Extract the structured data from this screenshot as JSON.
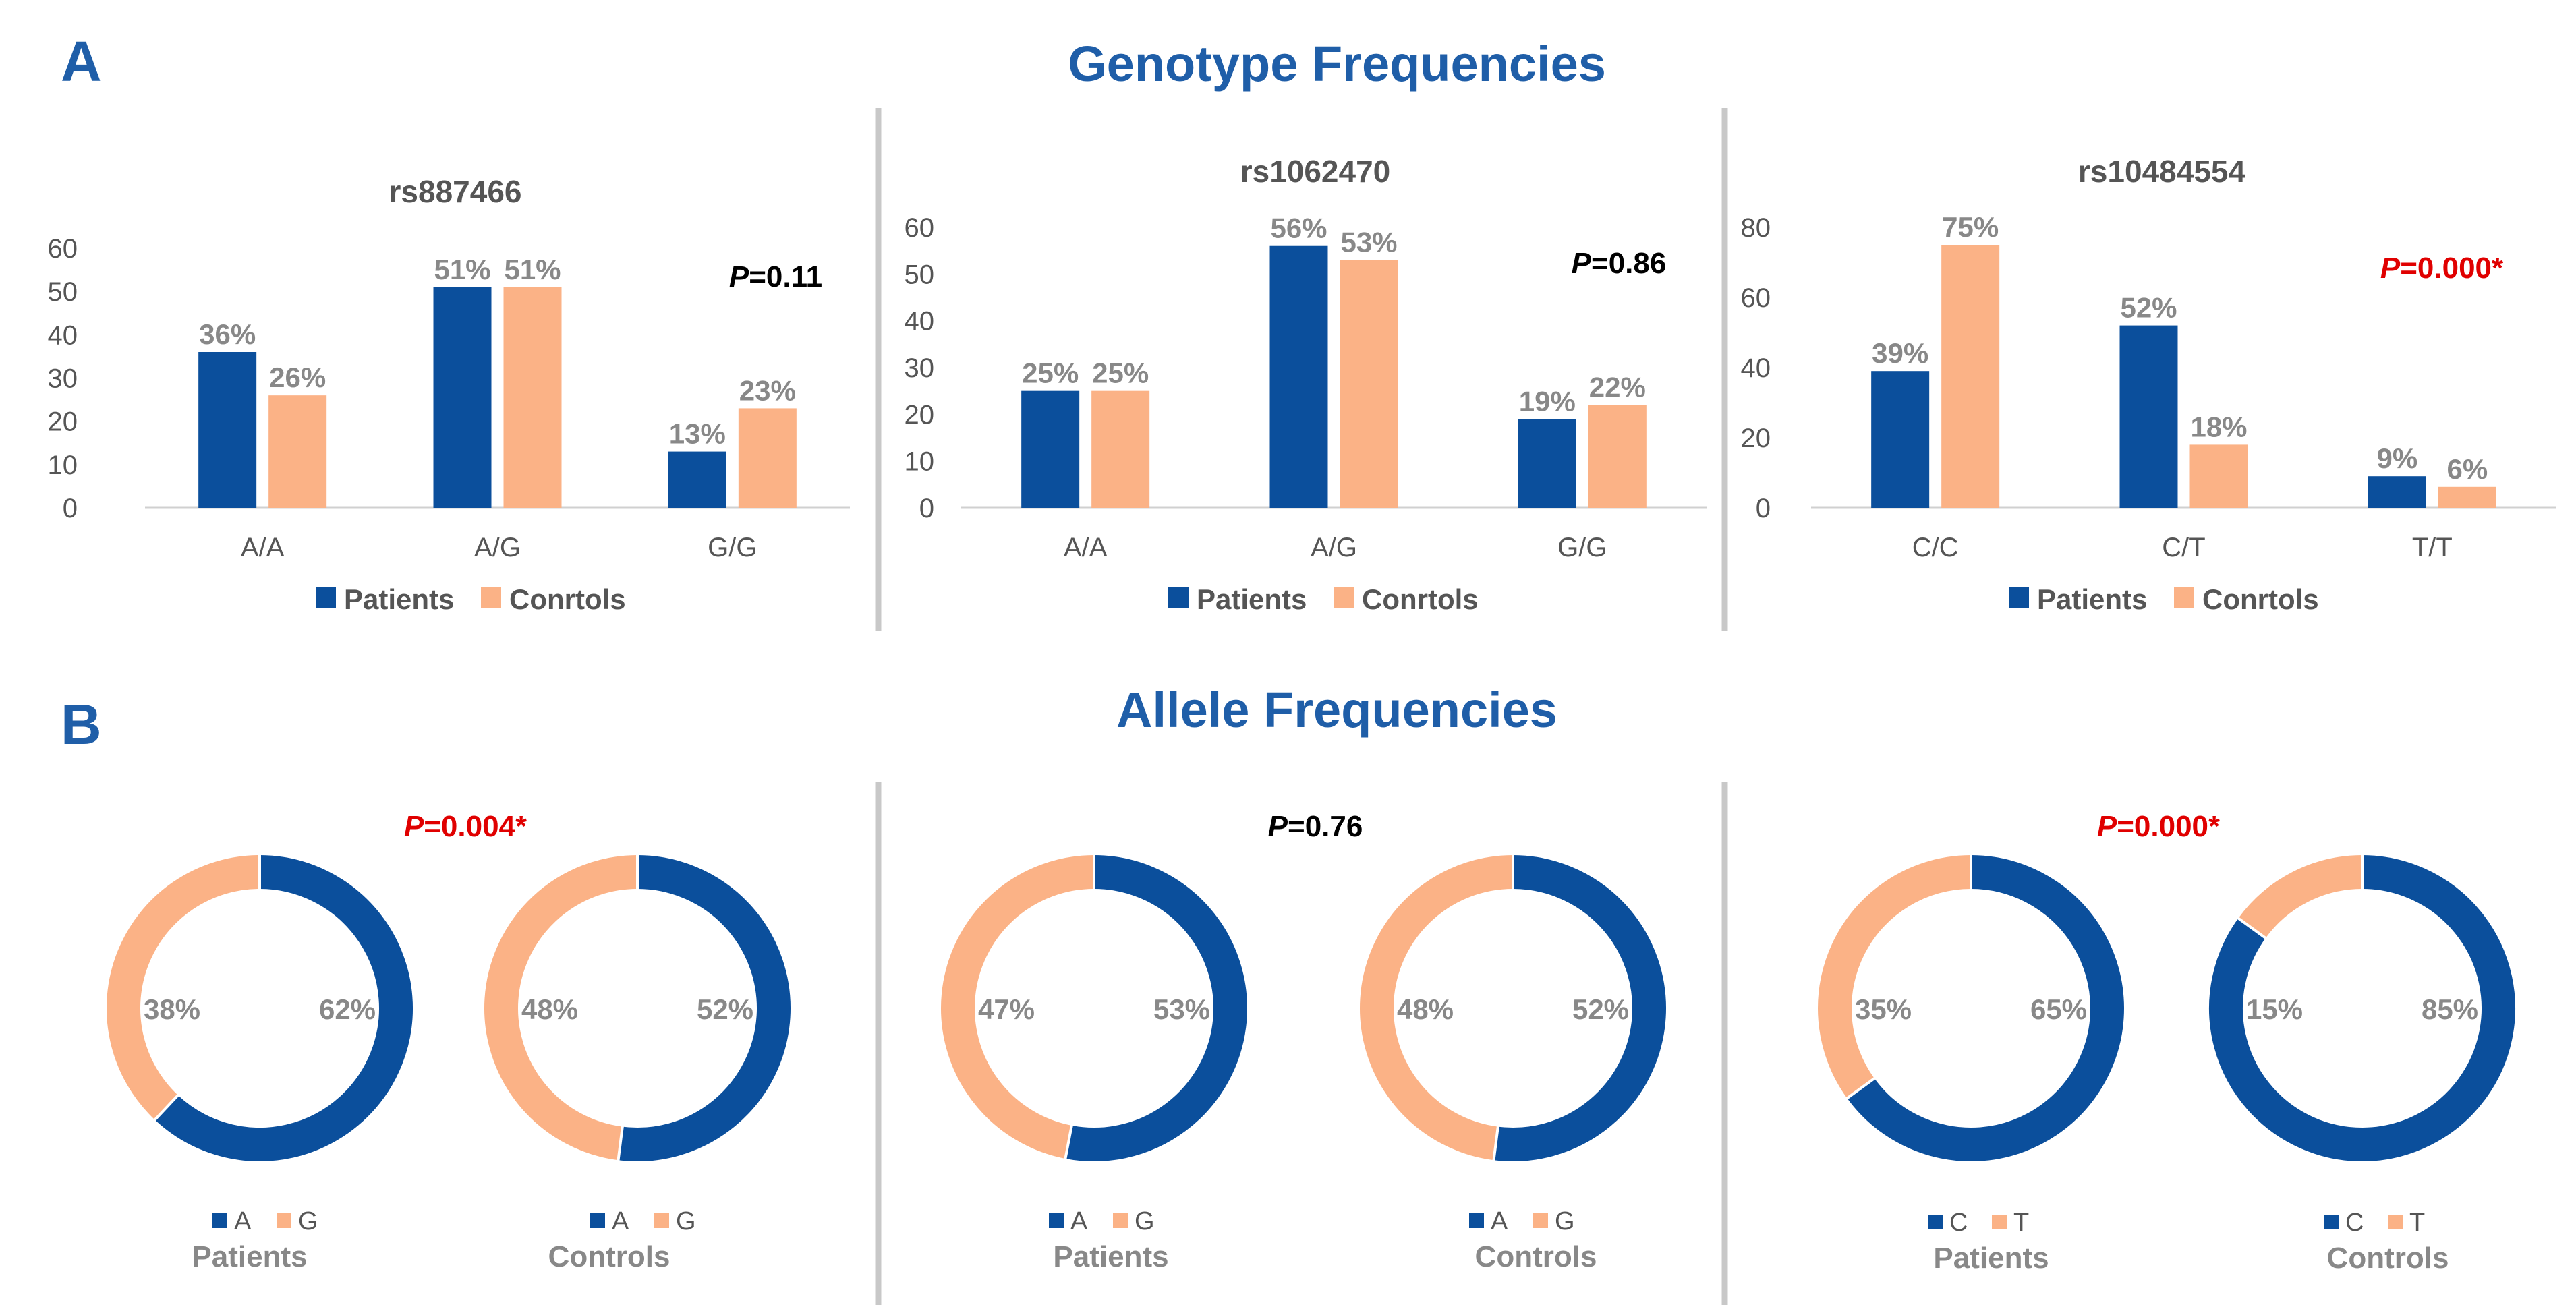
{
  "colors": {
    "patients": "#0b4f9c",
    "controls": "#fbb286",
    "title": "#1f5ea8",
    "label": "#888888",
    "axis": "#555555",
    "sig": "#e00000",
    "nonsig": "#000000",
    "divider": "#c8c8c8"
  },
  "panel_a": {
    "letter": "A",
    "title": "Genotype Frequencies"
  },
  "panel_b": {
    "letter": "B",
    "title": "Allele Frequencies"
  },
  "chart_data": [
    {
      "type": "bar",
      "title": "rs887466",
      "categories": [
        "A/A",
        "A/G",
        "G/G"
      ],
      "series": [
        {
          "name": "Patients",
          "values": [
            36,
            51,
            13
          ],
          "labels": [
            "36%",
            "51%",
            "13%"
          ]
        },
        {
          "name": "Conrtols",
          "values": [
            26,
            51,
            23
          ],
          "labels": [
            "26%",
            "51%",
            "23%"
          ]
        }
      ],
      "ylim": [
        0,
        60
      ],
      "yticks": [
        "0",
        "10",
        "20",
        "30",
        "40",
        "50",
        "60"
      ],
      "pvalue": {
        "p": "P",
        "rest": "=0.11",
        "significant": false
      },
      "legend": "bottom"
    },
    {
      "type": "bar",
      "title": "rs1062470",
      "categories": [
        "A/A",
        "A/G",
        "G/G"
      ],
      "series": [
        {
          "name": "Patients",
          "values": [
            25,
            56,
            19
          ],
          "labels": [
            "25%",
            "56%",
            "19%"
          ]
        },
        {
          "name": "Conrtols",
          "values": [
            25,
            53,
            22
          ],
          "labels": [
            "25%",
            "53%",
            "22%"
          ]
        }
      ],
      "ylim": [
        0,
        60
      ],
      "yticks": [
        "0",
        "10",
        "20",
        "30",
        "40",
        "50",
        "60"
      ],
      "pvalue": {
        "p": "P",
        "rest": "=0.86",
        "significant": false
      },
      "legend": "bottom"
    },
    {
      "type": "bar",
      "title": "rs10484554",
      "categories": [
        "C/C",
        "C/T",
        "T/T"
      ],
      "series": [
        {
          "name": "Patients",
          "values": [
            39,
            52,
            9
          ],
          "labels": [
            "39%",
            "52%",
            "9%"
          ]
        },
        {
          "name": "Conrtols",
          "values": [
            75,
            18,
            6
          ],
          "labels": [
            "75%",
            "18%",
            "6%"
          ]
        }
      ],
      "ylim": [
        0,
        80
      ],
      "yticks": [
        "0",
        "20",
        "40",
        "60",
        "80"
      ],
      "pvalue": {
        "p": "P",
        "rest": "=0.000*",
        "significant": true
      },
      "legend": "bottom"
    },
    {
      "type": "pie",
      "donut": true,
      "group": 1,
      "pvalue": {
        "p": "P",
        "rest": "=0.004*",
        "significant": true
      },
      "pies": [
        {
          "caption": "Patients",
          "slices": [
            {
              "name": "A",
              "value": 62,
              "label": "62%"
            },
            {
              "name": "G",
              "value": 38,
              "label": "38%"
            }
          ]
        },
        {
          "caption": "Controls",
          "slices": [
            {
              "name": "A",
              "value": 52,
              "label": "52%"
            },
            {
              "name": "G",
              "value": 48,
              "label": "48%"
            }
          ]
        }
      ]
    },
    {
      "type": "pie",
      "donut": true,
      "group": 2,
      "pvalue": {
        "p": "P",
        "rest": "=0.76",
        "significant": false
      },
      "pies": [
        {
          "caption": "Patients",
          "slices": [
            {
              "name": "A",
              "value": 53,
              "label": "53%"
            },
            {
              "name": "G",
              "value": 47,
              "label": "47%"
            }
          ]
        },
        {
          "caption": "Controls",
          "slices": [
            {
              "name": "A",
              "value": 52,
              "label": "52%"
            },
            {
              "name": "G",
              "value": 48,
              "label": "48%"
            }
          ]
        }
      ]
    },
    {
      "type": "pie",
      "donut": true,
      "group": 3,
      "pvalue": {
        "p": "P",
        "rest": "=0.000*",
        "significant": true
      },
      "pies": [
        {
          "caption": "Patients",
          "slices": [
            {
              "name": "C",
              "value": 65,
              "label": "65%"
            },
            {
              "name": "T",
              "value": 35,
              "label": "35%"
            }
          ]
        },
        {
          "caption": "Controls",
          "slices": [
            {
              "name": "C",
              "value": 85,
              "label": "85%"
            },
            {
              "name": "T",
              "value": 15,
              "label": "15%"
            }
          ]
        }
      ]
    }
  ]
}
